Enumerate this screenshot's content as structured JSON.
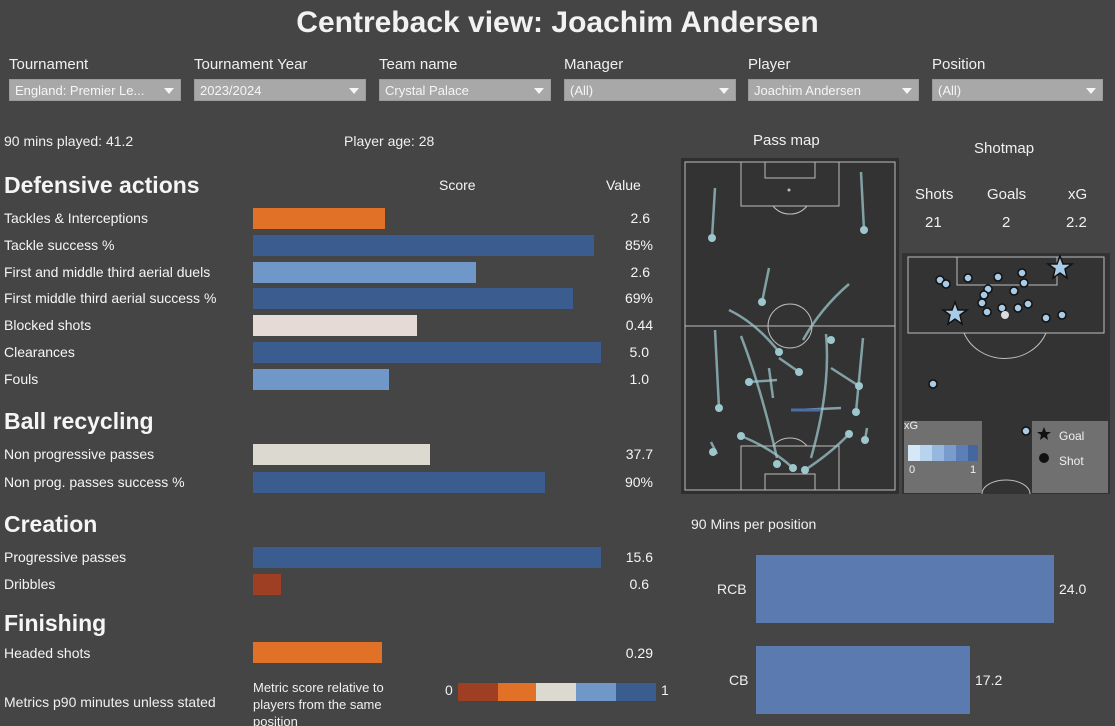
{
  "title": "Centreback view: Joachim Andersen",
  "filters": [
    {
      "label": "Tournament",
      "value": "England: Premier Le..."
    },
    {
      "label": "Tournament Year",
      "value": "2023/2024"
    },
    {
      "label": "Team name",
      "value": "Crystal Palace"
    },
    {
      "label": "Manager",
      "value": "(All)"
    },
    {
      "label": "Player",
      "value": "Joachim Andersen"
    },
    {
      "label": "Position",
      "value": "(All)"
    }
  ],
  "info": {
    "mins_played": "90 mins played: 41.2",
    "player_age": "Player age: 28"
  },
  "columns": {
    "score": "Score",
    "value": "Value"
  },
  "sections": {
    "defensive": "Defensive actions",
    "recycling": "Ball recycling",
    "creation": "Creation",
    "finishing": "Finishing"
  },
  "metrics": [
    {
      "label": "Tackles & Interceptions",
      "value": "2.6",
      "score": 0.38,
      "color": "#e07127"
    },
    {
      "label": "Tackle success %",
      "value": "85%",
      "score": 0.98,
      "color": "#3a5c8f"
    },
    {
      "label": "First and middle third aerial duels",
      "value": "2.6",
      "score": 0.64,
      "color": "#6f98c9"
    },
    {
      "label": "First middle third aerial success %",
      "value": "69%",
      "score": 0.92,
      "color": "#3a5c8f"
    },
    {
      "label": "Blocked shots",
      "value": "0.44",
      "score": 0.47,
      "color": "#e6dad6"
    },
    {
      "label": "Clearances",
      "value": "5.0",
      "score": 1.0,
      "color": "#3a5c8f"
    },
    {
      "label": "Fouls",
      "value": "1.0",
      "score": 0.39,
      "color": "#6f98c9"
    },
    {
      "label": "Non progressive passes",
      "value": "37.7",
      "score": 0.51,
      "color": "#dcdad0"
    },
    {
      "label": "Non prog. passes success %",
      "value": "90%",
      "score": 0.84,
      "color": "#3a5c8f"
    },
    {
      "label": "Progressive passes",
      "value": "15.6",
      "score": 1.0,
      "color": "#3a5c8f"
    },
    {
      "label": "Dribbles",
      "value": "0.6",
      "score": 0.08,
      "color": "#9e3f24"
    },
    {
      "label": "Headed shots",
      "value": "0.29",
      "score": 0.37,
      "color": "#e07127"
    }
  ],
  "footer": {
    "note": "Metrics p90 minutes unless stated",
    "legend_text": "Metric score relative to players from the same position",
    "legend_min": "0",
    "legend_max": "1",
    "legend_colors": [
      "#9e3f24",
      "#e07127",
      "#dcdad0",
      "#6f98c9",
      "#3a5c8f"
    ]
  },
  "pass_map": {
    "title": "Pass map"
  },
  "shotmap": {
    "title": "Shotmap",
    "stats": [
      {
        "label": "Shots",
        "value": "21"
      },
      {
        "label": "Goals",
        "value": "2"
      },
      {
        "label": "xG",
        "value": "2.2"
      }
    ],
    "legend_xg_label": "xG",
    "legend_xg_min": "0",
    "legend_xg_max": "1",
    "legend_goal": "Goal",
    "legend_shot": "Shot"
  },
  "positions": {
    "title": "90 Mins per position",
    "bar_color": "#5b7bb0",
    "items": [
      {
        "label": "RCB",
        "value": 24.0,
        "display": "24.0"
      },
      {
        "label": "CB",
        "value": 17.2,
        "display": "17.2"
      }
    ]
  }
}
